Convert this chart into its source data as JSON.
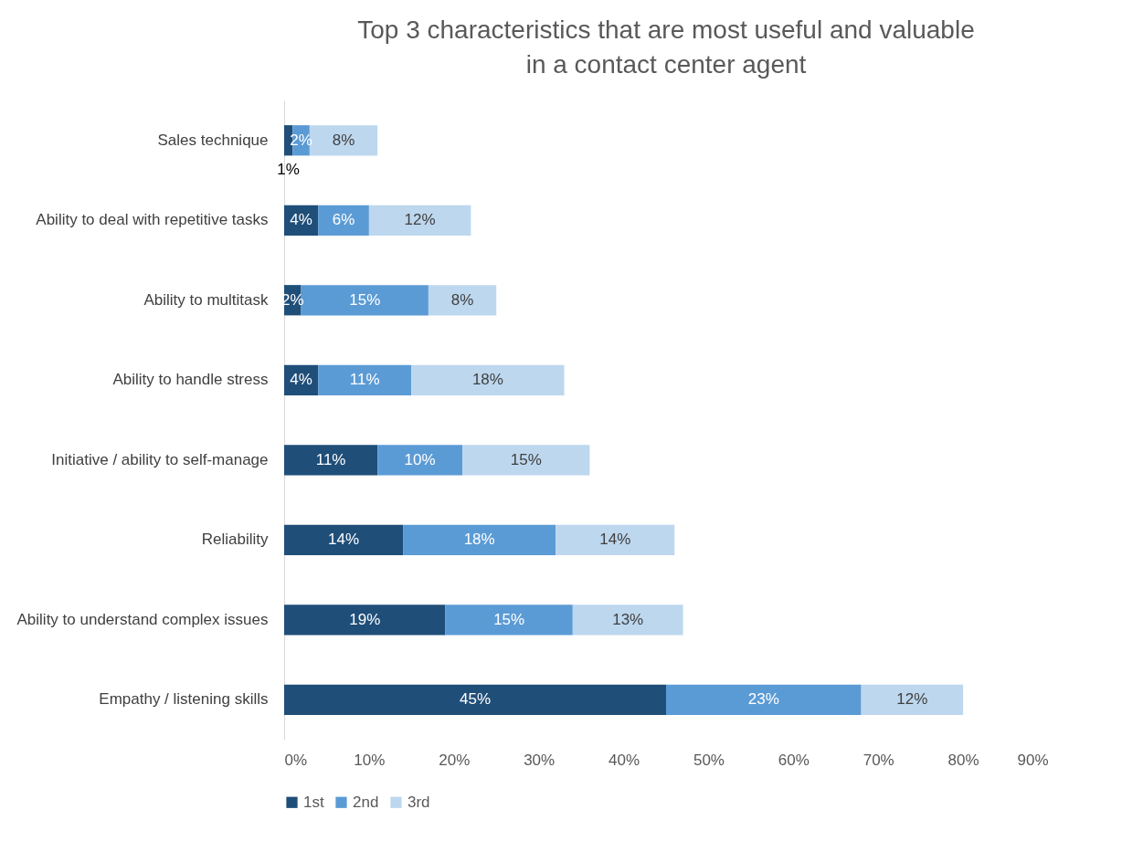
{
  "chart_data": {
    "type": "bar",
    "orientation": "horizontal",
    "stacked": true,
    "title": "Top 3 characteristics that are most useful and valuable\nin a contact center agent",
    "categories": [
      "Sales technique",
      "Ability to deal with repetitive tasks",
      "Ability to multitask",
      "Ability to handle stress",
      "Initiative / ability to self-manage",
      "Reliability",
      "Ability to understand complex issues",
      "Empathy / listening skills"
    ],
    "series": [
      {
        "name": "1st",
        "color": "#1f4e79",
        "values": [
          1,
          4,
          2,
          4,
          11,
          14,
          19,
          45
        ],
        "value_labels": [
          "1%",
          "4%",
          "2%",
          "4%",
          "11%",
          "14%",
          "19%",
          "45%"
        ]
      },
      {
        "name": "2nd",
        "color": "#5b9bd5",
        "values": [
          2,
          6,
          15,
          11,
          10,
          18,
          15,
          23
        ],
        "value_labels": [
          "2%",
          "6%",
          "15%",
          "11%",
          "10%",
          "18%",
          "15%",
          "23%"
        ]
      },
      {
        "name": "3rd",
        "color": "#bdd7ee",
        "values": [
          8,
          12,
          8,
          18,
          15,
          14,
          13,
          12
        ],
        "value_labels": [
          "8%",
          "12%",
          "8%",
          "18%",
          "15%",
          "14%",
          "13%",
          "12%"
        ]
      }
    ],
    "xlim": [
      0,
      90
    ],
    "xticks": [
      {
        "value": 0,
        "label": "0%"
      },
      {
        "value": 10,
        "label": "10%"
      },
      {
        "value": 20,
        "label": "20%"
      },
      {
        "value": 30,
        "label": "30%"
      },
      {
        "value": 40,
        "label": "40%"
      },
      {
        "value": 50,
        "label": "50%"
      },
      {
        "value": 60,
        "label": "60%"
      },
      {
        "value": 70,
        "label": "70%"
      },
      {
        "value": 80,
        "label": "80%"
      },
      {
        "value": 90,
        "label": "90%"
      }
    ],
    "grid": false,
    "legend": "bottom"
  }
}
